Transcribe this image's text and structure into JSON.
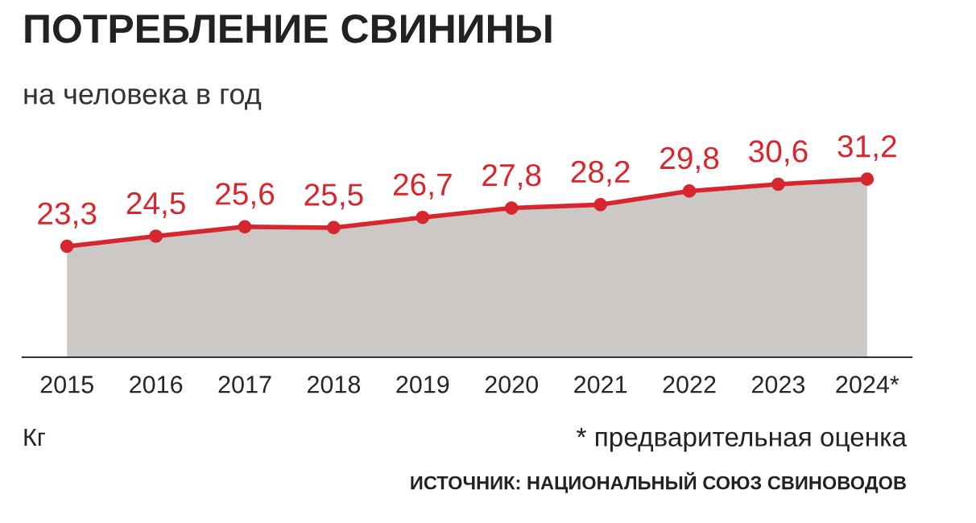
{
  "chart_data": {
    "type": "area",
    "title": "ПОТРЕБЛЕНИЕ СВИНИНЫ",
    "subtitle": "на человека в год",
    "categories": [
      "2015",
      "2016",
      "2017",
      "2018",
      "2019",
      "2020",
      "2021",
      "2022",
      "2023",
      "2024*"
    ],
    "series": [
      {
        "color": "#d7262e",
        "values": [
          23.3,
          24.5,
          25.6,
          25.5,
          26.7,
          27.8,
          28.2,
          29.8,
          30.6,
          31.2
        ],
        "value_labels": [
          "23,3",
          "24,5",
          "25,6",
          "25,5",
          "26,7",
          "27,8",
          "28,2",
          "29,8",
          "30,6",
          "31,2"
        ]
      }
    ],
    "marker": "circle",
    "tick_labels": "x",
    "grid": false,
    "annotations": [
      "Кг",
      "* предварительная оценка",
      "ИСТОЧНИК: НАЦИОНАЛЬНЫЙ СОЮЗ СВИНОВОДОВ"
    ]
  }
}
